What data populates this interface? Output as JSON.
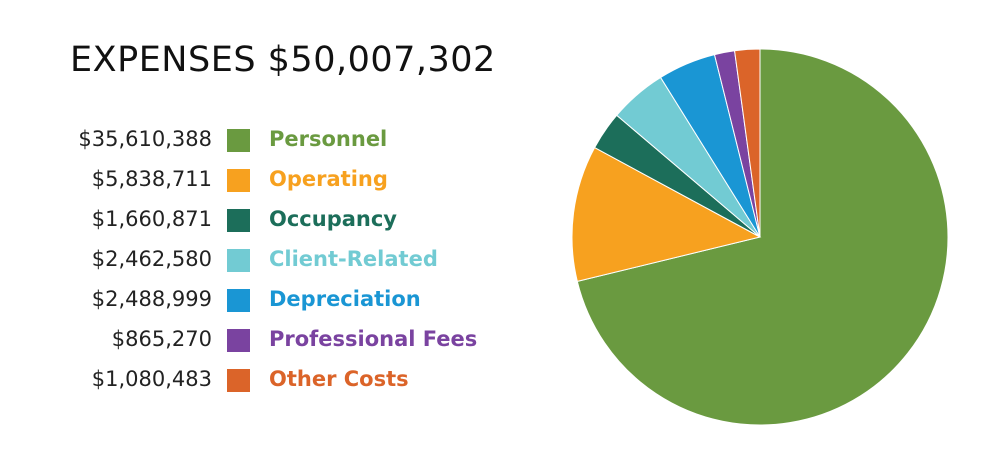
{
  "chart_data": {
    "type": "pie",
    "title": "EXPENSES $50,007,302",
    "legend_placement": "left",
    "slices": [
      {
        "label": "Personnel",
        "value": 35610388,
        "value_label": "$35,610,388",
        "color": "#6a9a40"
      },
      {
        "label": "Operating",
        "value": 5838711,
        "value_label": "$5,838,711",
        "color": "#f7a11f"
      },
      {
        "label": "Occupancy",
        "value": 1660871,
        "value_label": "$1,660,871",
        "color": "#1c6e5a"
      },
      {
        "label": "Client-Related",
        "value": 2462580,
        "value_label": "$2,462,580",
        "color": "#72cbd3"
      },
      {
        "label": "Depreciation",
        "value": 2488999,
        "value_label": "$2,488,999",
        "color": "#1a96d4"
      },
      {
        "label": "Professional Fees",
        "value": 865270,
        "value_label": "$865,270",
        "color": "#7a43a0"
      },
      {
        "label": "Other Costs",
        "value": 1080483,
        "value_label": "$1,080,483",
        "color": "#db6429"
      }
    ]
  }
}
